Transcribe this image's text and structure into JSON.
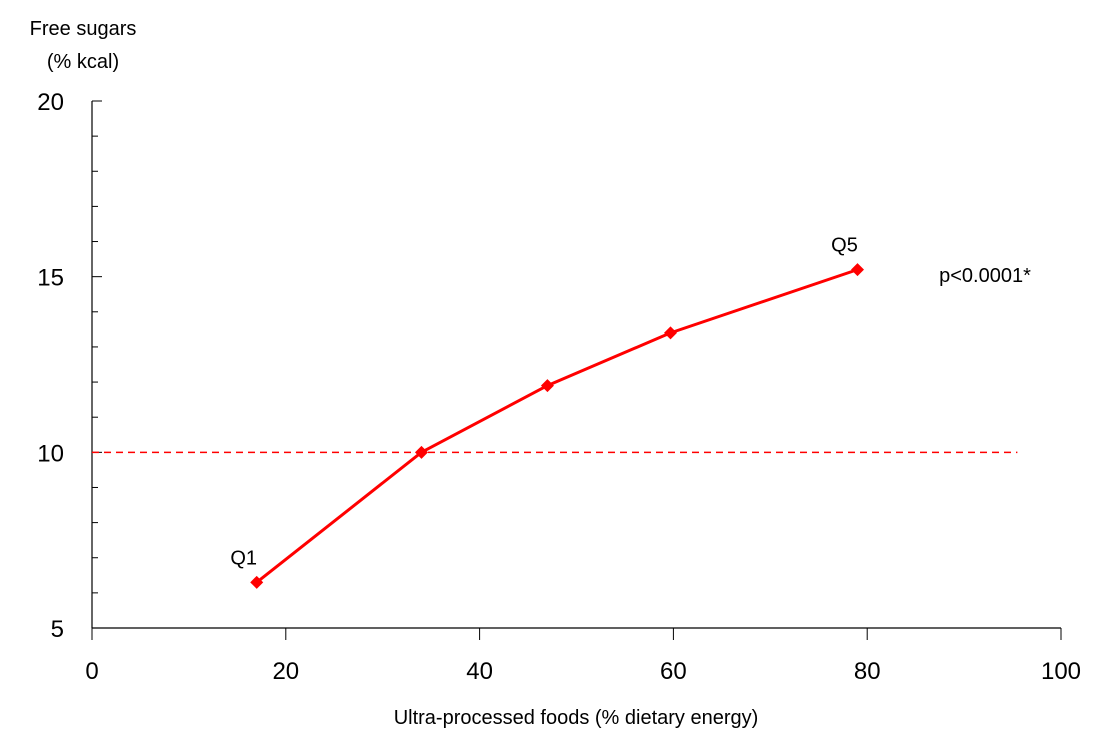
{
  "colors": {
    "series": "#ff0000",
    "axis": "#000000",
    "text": "#000000"
  },
  "chart_data": {
    "type": "line",
    "title": "",
    "xlabel": "Ultra-processed foods (% dietary energy)",
    "ylabel_lines": [
      "Free sugars",
      "(% kcal)"
    ],
    "xlim": [
      0,
      100
    ],
    "ylim": [
      5,
      20
    ],
    "x_ticks": [
      0,
      20,
      40,
      60,
      80,
      100
    ],
    "y_ticks": [
      5,
      10,
      15,
      20
    ],
    "y_minor_step": 1,
    "grid": false,
    "legend": "none",
    "series": [
      {
        "x": [
          17,
          34,
          47,
          59.7,
          79
        ],
        "y": [
          6.3,
          10.0,
          11.9,
          13.4,
          15.2
        ],
        "marker": "diamond"
      }
    ],
    "reference_line": {
      "y": 10,
      "x_start": 0,
      "x_end": 95.5,
      "style": "dashed"
    },
    "point_labels": [
      {
        "text": "Q1",
        "x": 17,
        "y": 6.3
      },
      {
        "text": "Q5",
        "x": 79,
        "y": 15.2
      }
    ],
    "annotation": {
      "text": "p<0.0001*"
    }
  }
}
